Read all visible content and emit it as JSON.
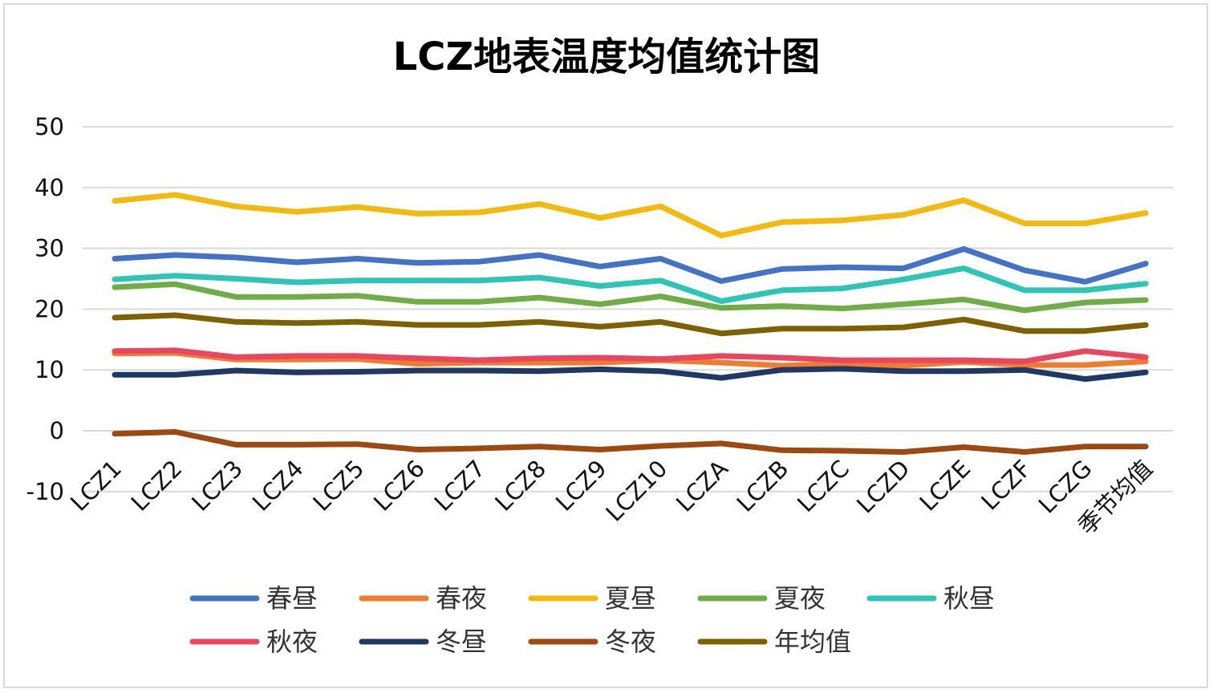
{
  "chart_data": {
    "type": "line",
    "title": "LCZ地表温度均值统计图",
    "xlabel": "",
    "ylabel": "",
    "ylim": [
      -10,
      50
    ],
    "yticks": [
      -10,
      0,
      10,
      20,
      30,
      40,
      50
    ],
    "grid": true,
    "legend_position": "bottom",
    "categories": [
      "LCZ1",
      "LCZ2",
      "LCZ3",
      "LCZ4",
      "LCZ5",
      "LCZ6",
      "LCZ7",
      "LCZ8",
      "LCZ9",
      "LCZ10",
      "LCZA",
      "LCZB",
      "LCZC",
      "LCZD",
      "LCZE",
      "LCZF",
      "LCZG",
      "季节均值"
    ],
    "series": [
      {
        "name": "春昼",
        "color": "#4472C4",
        "values": [
          28.3,
          28.9,
          28.5,
          27.7,
          28.3,
          27.6,
          27.8,
          28.9,
          27.0,
          28.3,
          24.6,
          26.6,
          26.9,
          26.7,
          29.9,
          26.4,
          24.5,
          27.5
        ]
      },
      {
        "name": "春夜",
        "color": "#ED7D31",
        "values": [
          12.7,
          12.8,
          11.7,
          11.7,
          11.8,
          11.0,
          11.2,
          11.2,
          11.2,
          11.6,
          11.2,
          10.7,
          11.0,
          10.7,
          11.3,
          10.8,
          10.8,
          11.4
        ]
      },
      {
        "name": "夏昼",
        "color": "#F2B90F",
        "values": [
          37.8,
          38.8,
          36.9,
          36.0,
          36.8,
          35.7,
          35.9,
          37.3,
          35.0,
          36.9,
          32.1,
          34.3,
          34.6,
          35.5,
          37.9,
          34.1,
          34.1,
          35.8
        ]
      },
      {
        "name": "夏夜",
        "color": "#70AD47",
        "values": [
          23.6,
          24.1,
          22.0,
          22.0,
          22.2,
          21.2,
          21.2,
          21.9,
          20.8,
          22.1,
          20.2,
          20.5,
          20.1,
          20.8,
          21.6,
          19.8,
          21.1,
          21.5
        ]
      },
      {
        "name": "秋昼",
        "color": "#2EC4B6",
        "values": [
          24.9,
          25.5,
          25.0,
          24.4,
          24.7,
          24.7,
          24.7,
          25.2,
          23.8,
          24.7,
          21.3,
          23.1,
          23.4,
          24.9,
          26.7,
          23.1,
          23.1,
          24.2
        ]
      },
      {
        "name": "秋夜",
        "color": "#E8475F",
        "values": [
          13.1,
          13.2,
          12.1,
          12.3,
          12.3,
          11.9,
          11.6,
          11.9,
          12.0,
          11.8,
          12.3,
          12.0,
          11.6,
          11.6,
          11.6,
          11.4,
          13.1,
          12.1
        ]
      },
      {
        "name": "冬昼",
        "color": "#1F3864",
        "values": [
          9.2,
          9.2,
          9.9,
          9.6,
          9.7,
          9.9,
          9.9,
          9.8,
          10.1,
          9.8,
          8.7,
          10.0,
          10.2,
          9.8,
          9.8,
          10.0,
          8.5,
          9.6
        ]
      },
      {
        "name": "冬夜",
        "color": "#9C4A12",
        "values": [
          -0.5,
          -0.2,
          -2.3,
          -2.3,
          -2.2,
          -3.1,
          -2.9,
          -2.6,
          -3.1,
          -2.5,
          -2.1,
          -3.2,
          -3.3,
          -3.5,
          -2.7,
          -3.5,
          -2.6,
          -2.6
        ]
      },
      {
        "name": "年均值",
        "color": "#7F6000",
        "values": [
          18.6,
          19.0,
          17.9,
          17.7,
          17.9,
          17.4,
          17.4,
          17.9,
          17.1,
          17.9,
          16.0,
          16.8,
          16.8,
          17.0,
          18.3,
          16.4,
          16.4,
          17.4
        ]
      }
    ]
  }
}
